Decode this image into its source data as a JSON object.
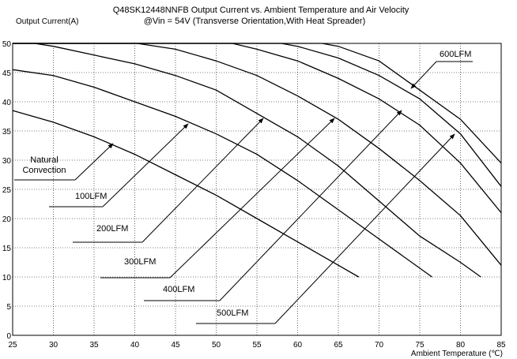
{
  "chart_data": {
    "type": "line",
    "title": "Q48SK12448NNFB Output Current vs. Ambient Temperature and Air Velocity",
    "subtitle": "@Vin = 54V (Transverse Orientation,With Heat Spreader)",
    "y_label": "Output Current(A)",
    "x_label": "Ambient Temperature (℃)",
    "xlim": [
      25,
      85
    ],
    "xticks": [
      25,
      30,
      35,
      40,
      45,
      50,
      55,
      60,
      65,
      70,
      75,
      80,
      85
    ],
    "ylim": [
      0,
      50
    ],
    "yticks": [
      0,
      5,
      10,
      15,
      20,
      25,
      30,
      35,
      40,
      45,
      50
    ],
    "grid": true,
    "series": [
      {
        "name": "Natural Convection",
        "color": "#000000",
        "x": [
          25,
          30,
          35,
          40,
          45,
          50,
          55,
          60,
          65,
          67.5
        ],
        "values": [
          38.5,
          36.5,
          34,
          31,
          27.5,
          24,
          20,
          16,
          12,
          10
        ]
      },
      {
        "name": "100LFM",
        "color": "#000000",
        "x": [
          25,
          30,
          35,
          40,
          45,
          50,
          55,
          60,
          65,
          70,
          76.5
        ],
        "values": [
          45.5,
          44.5,
          42.5,
          40,
          37.5,
          34.5,
          31,
          26.5,
          21.5,
          16.5,
          10
        ]
      },
      {
        "name": "200LFM",
        "color": "#000000",
        "x": [
          25,
          27.7,
          30,
          35,
          40,
          45,
          50,
          55,
          60,
          65,
          70,
          75,
          80,
          82.5
        ],
        "values": [
          50,
          50,
          49.5,
          48,
          46.5,
          44.5,
          42,
          38,
          34,
          29,
          23,
          17,
          12.5,
          10
        ]
      },
      {
        "name": "300LFM",
        "color": "#000000",
        "x": [
          25,
          40.3,
          45,
          50,
          55,
          60,
          65,
          70,
          75,
          80,
          85
        ],
        "values": [
          50,
          50,
          49,
          47,
          44.5,
          41,
          37,
          32,
          26.5,
          20.5,
          12
        ]
      },
      {
        "name": "400LFM",
        "color": "#000000",
        "x": [
          25,
          52,
          55,
          60,
          65,
          70,
          75,
          80,
          85
        ],
        "values": [
          50,
          50,
          49,
          47,
          44,
          40.5,
          36,
          29.5,
          21
        ]
      },
      {
        "name": "500LFM",
        "color": "#000000",
        "x": [
          25,
          58,
          60,
          65,
          70,
          75,
          80,
          85
        ],
        "values": [
          50,
          50,
          49.5,
          47.5,
          44.5,
          40.5,
          34.5,
          25.5
        ]
      },
      {
        "name": "600LFM",
        "color": "#000000",
        "x": [
          25,
          63,
          65,
          70,
          75,
          80,
          85
        ],
        "values": [
          50,
          50,
          49.5,
          47,
          42,
          37,
          29.5
        ]
      }
    ]
  }
}
